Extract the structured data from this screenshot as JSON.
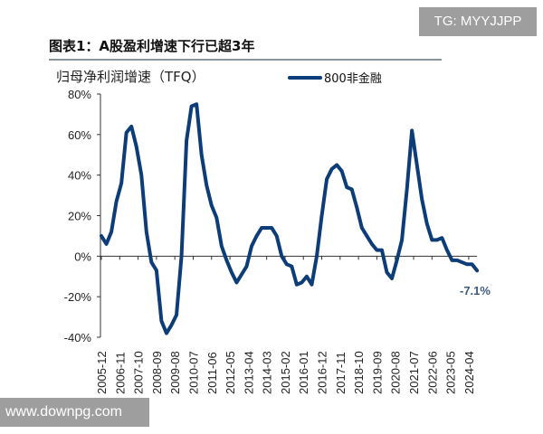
{
  "watermark_top": "TG: MYYJJPP",
  "watermark_bottom": "www.downpg.com",
  "chart_data": {
    "type": "line",
    "title": "图表1：A股盈利增速下行已超3年",
    "ylabel": "归母净利润增速（TFQ）",
    "xlabel": "",
    "frequency": "quarterly",
    "start": "2005-12",
    "ylim": [
      -40,
      80
    ],
    "yticks": [
      -40,
      -20,
      0,
      20,
      40,
      60,
      80
    ],
    "ytick_labels": [
      "-40%",
      "-20%",
      "0%",
      "20%",
      "40%",
      "60%",
      "80%"
    ],
    "xtick_labels": [
      "2005-12",
      "2006-11",
      "2007-10",
      "2008-09",
      "2009-08",
      "2010-07",
      "2011-06",
      "2012-05",
      "2013-04",
      "2014-03",
      "2015-02",
      "2016-01",
      "2016-12",
      "2017-11",
      "2018-10",
      "2019-09",
      "2020-08",
      "2021-07",
      "2022-06",
      "2023-05",
      "2024-04"
    ],
    "legend": "top-right",
    "series": [
      {
        "name": "800非金融",
        "color": "#0d3d78",
        "values": [
          10,
          6,
          12,
          27,
          36,
          61,
          64,
          54,
          40,
          12,
          -3,
          -7,
          -32,
          -38,
          -34,
          -29,
          0,
          57,
          74,
          75,
          50,
          35,
          25,
          19,
          5,
          -2,
          -8,
          -13,
          -9,
          -5,
          5,
          10,
          14,
          14,
          14,
          10,
          0,
          -4,
          -5,
          -14,
          -13,
          -10,
          -14,
          0,
          20,
          38,
          43,
          45,
          42,
          34,
          33,
          24,
          14,
          10,
          6,
          3,
          3,
          -8,
          -11,
          -2,
          8,
          33,
          62,
          45,
          28,
          16,
          8,
          8,
          9,
          3,
          -2,
          -2,
          -3,
          -4,
          -4,
          -7.1
        ]
      }
    ],
    "annotation": "-7.1%"
  }
}
